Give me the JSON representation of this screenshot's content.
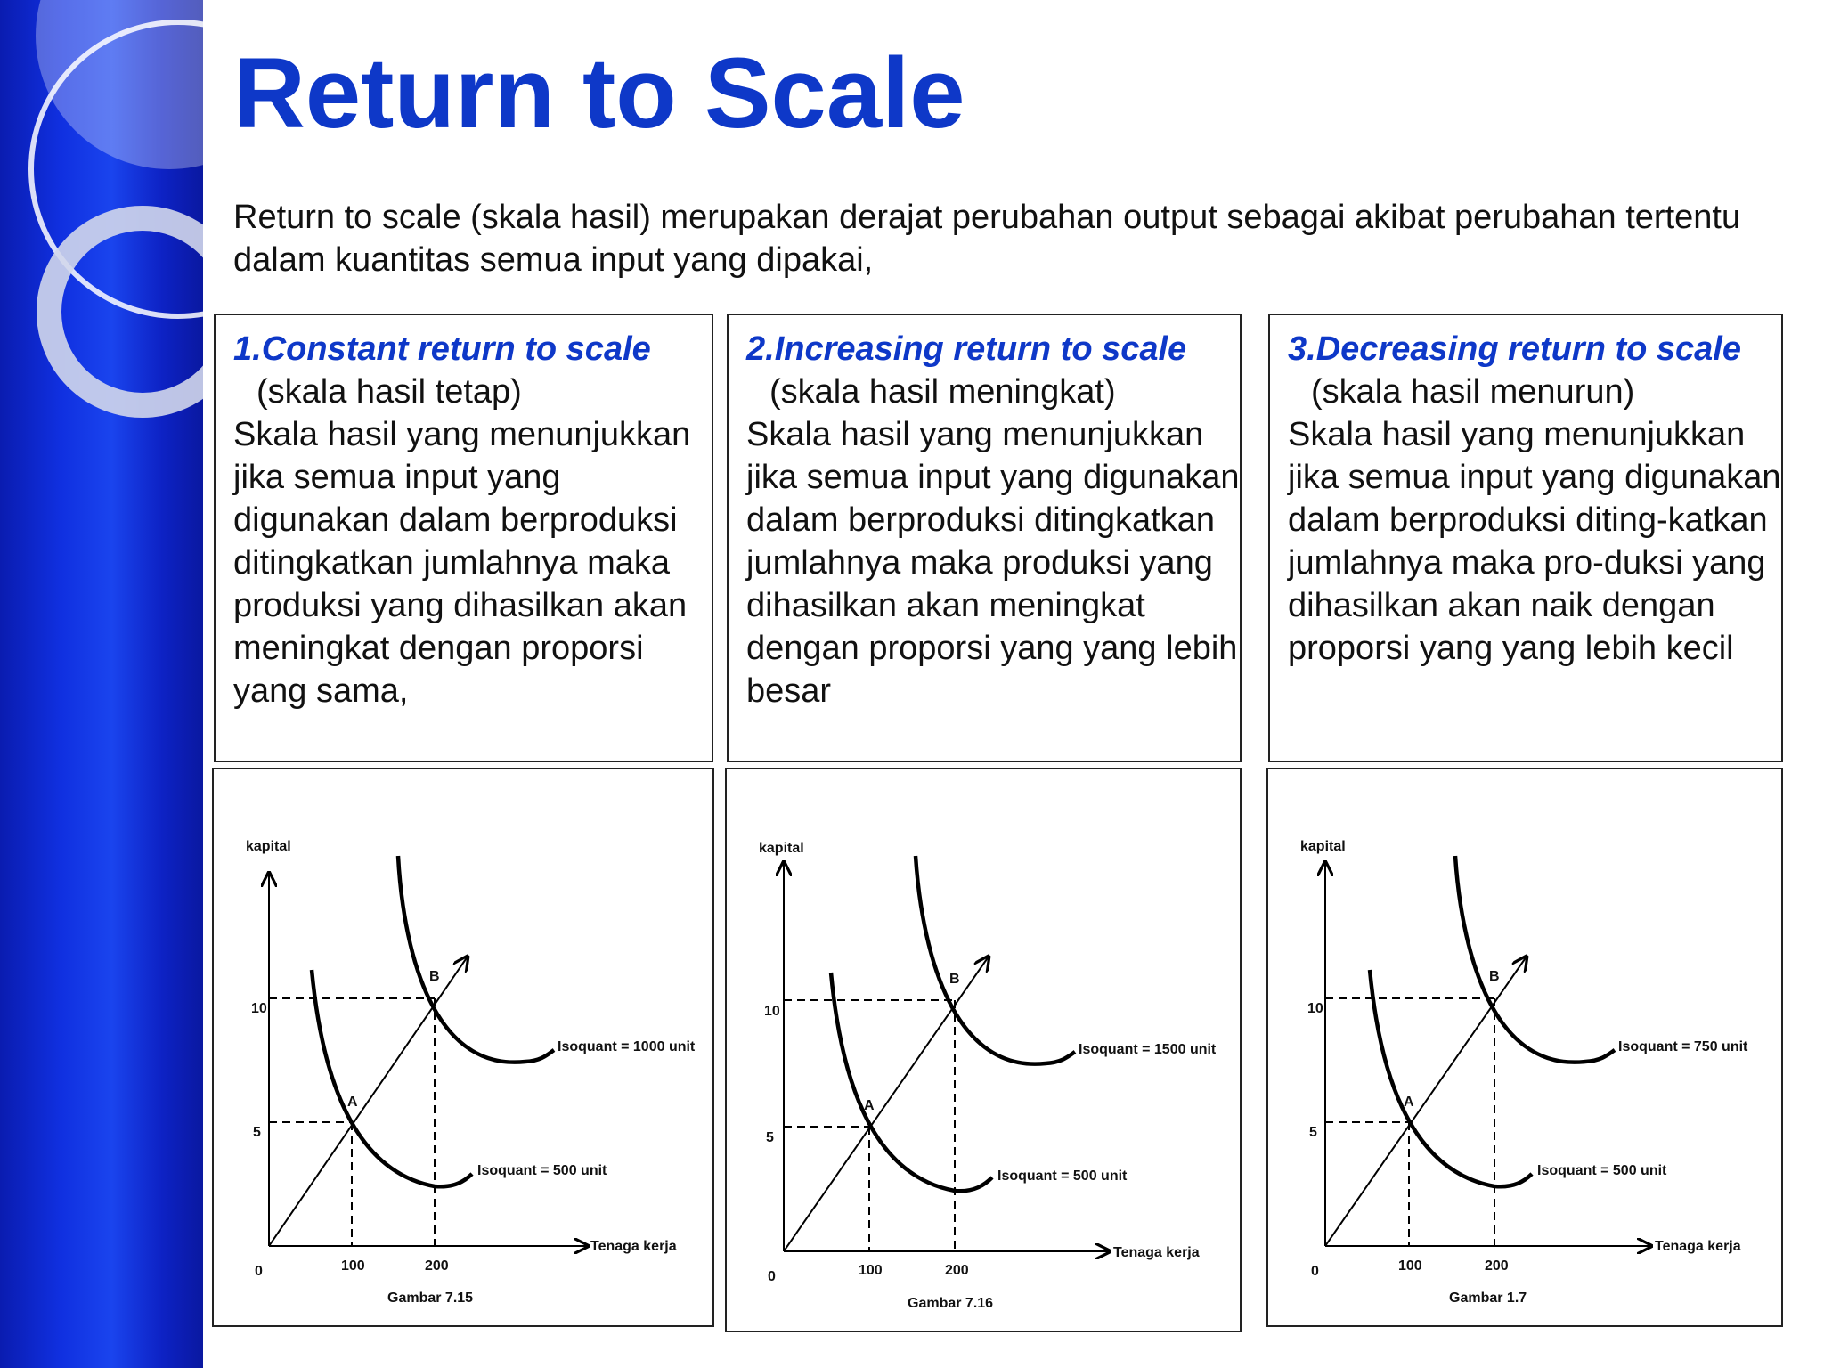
{
  "slide": {
    "title": "Return to Scale",
    "intro": "Return to scale (skala hasil) merupakan derajat perubahan output sebagai akibat perubahan tertentu dalam kuantitas semua input yang dipakai,"
  },
  "sections": [
    {
      "heading": "1.Constant return to scale",
      "subheading": "(skala hasil tetap)",
      "body": "Skala hasil yang menunjukkan jika semua input yang digunakan dalam berproduksi ditingkatkan jumlahnya maka produksi yang dihasilkan akan meningkat dengan proporsi yang sama,"
    },
    {
      "heading": "2.Increasing return to scale",
      "subheading": "(skala hasil meningkat)",
      "body": "Skala hasil yang menunjukkan jika semua input yang digunakan dalam berproduksi ditingkatkan jumlahnya maka produksi yang dihasilkan akan meningkat dengan proporsi yang yang lebih besar"
    },
    {
      "heading": "3.Decreasing return to scale",
      "subheading": "(skala hasil menurun)",
      "body": "Skala hasil yang menunjukkan jika semua input yang digunakan dalam berproduksi diting-katkan jumlahnya maka pro-duksi yang dihasilkan akan naik dengan proporsi yang yang lebih kecil"
    }
  ],
  "diagrams": [
    {
      "y_axis_label": "kapital",
      "x_axis_label": "Tenaga kerja",
      "origin_label": "0",
      "x_ticks": [
        "100",
        "200"
      ],
      "y_ticks": [
        "5",
        "10"
      ],
      "point_a_label": "A",
      "point_b_label": "B",
      "isoquant_low_label": "Isoquant =  500 unit",
      "isoquant_high_label": "Isoquant =  1000 unit",
      "caption": "Gambar  7.15"
    },
    {
      "y_axis_label": "kapital",
      "x_axis_label": "Tenaga kerja",
      "origin_label": "0",
      "x_ticks": [
        "100",
        "200"
      ],
      "y_ticks": [
        "5",
        "10"
      ],
      "point_a_label": "A",
      "point_b_label": "B",
      "isoquant_low_label": "Isoquant =  500 unit",
      "isoquant_high_label": "Isoquant =  1500 unit",
      "caption": "Gambar  7.16"
    },
    {
      "y_axis_label": "kapital",
      "x_axis_label": "Tenaga kerja",
      "origin_label": "0",
      "x_ticks": [
        "100",
        "200"
      ],
      "y_ticks": [
        "5",
        "10"
      ],
      "point_a_label": "A",
      "point_b_label": "B",
      "isoquant_low_label": "Isoquant =  500 unit",
      "isoquant_high_label": "Isoquant =  750 unit",
      "caption": "Gambar  1.7"
    }
  ],
  "colors": {
    "title": "#0e38c8",
    "heading": "#0e38c8",
    "sidebar": "#1030e0"
  }
}
